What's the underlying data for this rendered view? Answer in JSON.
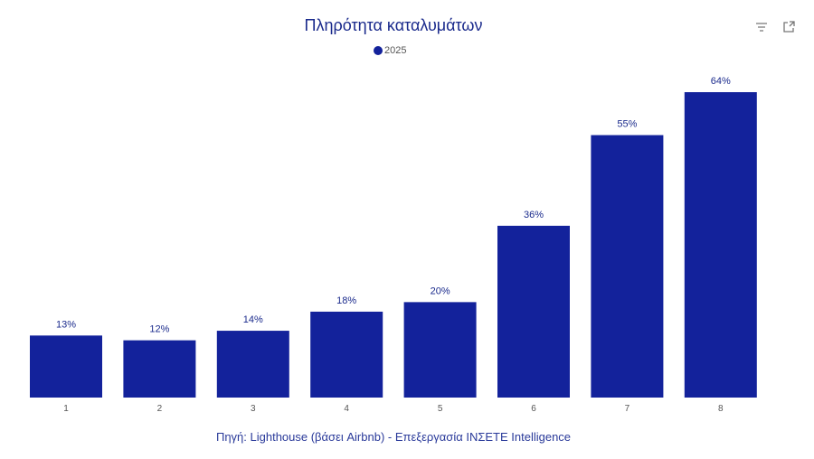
{
  "chart_data": {
    "type": "bar",
    "title": "Πληρότητα καταλυμάτων",
    "legend": [
      {
        "name": "2025",
        "color": "#13229b"
      }
    ],
    "legend_position": "top-center",
    "categories": [
      "1",
      "2",
      "3",
      "4",
      "5",
      "6",
      "7",
      "8"
    ],
    "values": [
      13,
      12,
      14,
      18,
      20,
      36,
      55,
      64
    ],
    "data_labels": [
      "13%",
      "12%",
      "14%",
      "18%",
      "20%",
      "36%",
      "55%",
      "64%"
    ],
    "xlabel": "",
    "ylabel": "",
    "ylim": [
      0,
      64
    ],
    "grid": false
  },
  "source": "Πηγή: Lighthouse (βάσει Airbnb) - Επεξεργασία ΙΝΣΕΤΕ Intelligence",
  "icons": {
    "filter": "filter-icon",
    "expand": "expand-icon"
  }
}
